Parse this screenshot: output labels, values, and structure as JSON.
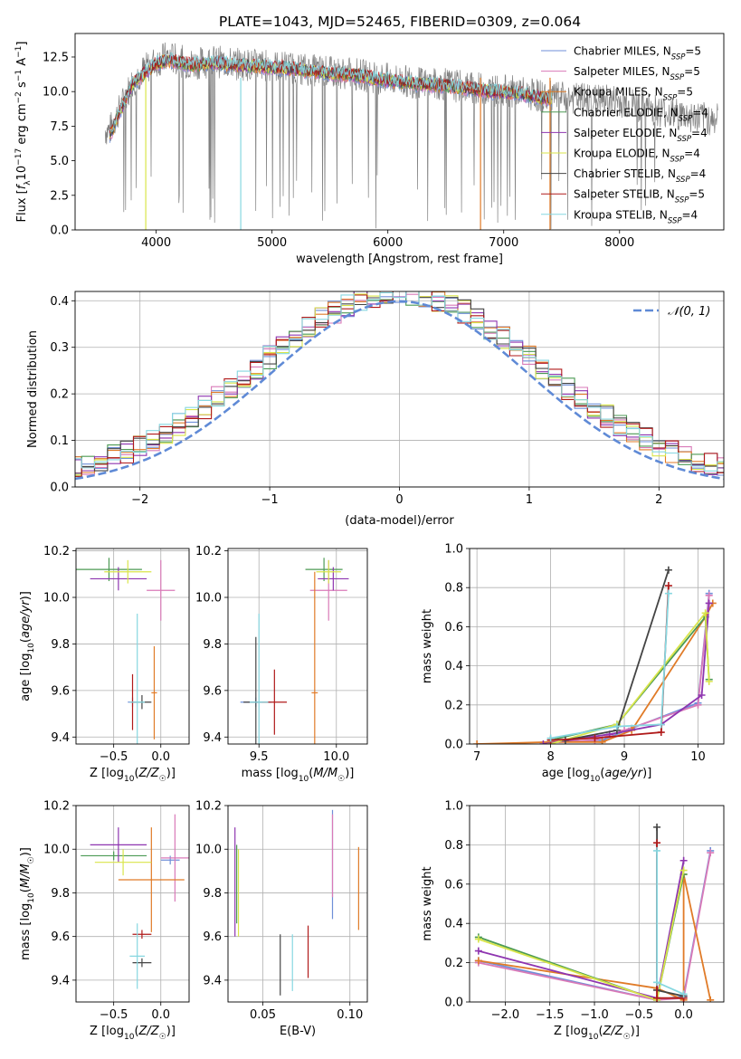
{
  "figure_title": "PLATE=1043, MJD=52465, FIBERID=0309, z=0.064",
  "series_colors": {
    "Chabrier MILES": "#6f8fd8",
    "Salpeter MILES": "#d97ab8",
    "Kroupa MILES": "#e07b28",
    "Chabrier ELODIE": "#4c9a54",
    "Salpeter ELODIE": "#8e35b0",
    "Kroupa ELODIE": "#d9e54a",
    "Chabrier STELIB": "#444444",
    "Salpeter STELIB": "#b01a1a",
    "Kroupa STELIB": "#86d7e0"
  },
  "chart_data": [
    {
      "id": "spectrum",
      "type": "line",
      "title": "PLATE=1043, MJD=52465, FIBERID=0309, z=0.064",
      "xlabel": "wavelength [Angstrom, rest frame]",
      "ylabel": "Flux [fλ10⁻¹⁷ erg cm⁻² s⁻¹ A⁻¹]",
      "xlim": [
        3300,
        8900
      ],
      "ylim": [
        0,
        14.2
      ],
      "xticks": [
        4000,
        5000,
        6000,
        7000,
        8000
      ],
      "yticks": [
        0.0,
        2.5,
        5.0,
        7.5,
        10.0,
        12.5
      ],
      "grid": false,
      "legend_position": "right",
      "data_curve": {
        "color": "#808080",
        "x": [
          3600,
          3700,
          3800,
          3900,
          4000,
          4100,
          4300,
          4500,
          4700,
          4900,
          5100,
          5300,
          5500,
          5700,
          5900,
          6100,
          6300,
          6500,
          6700,
          6900,
          7100,
          7300,
          7400,
          7600,
          7800,
          8000,
          8200,
          8400,
          8600,
          8800
        ],
        "y": [
          7.2,
          9.0,
          10.8,
          11.6,
          12.2,
          12.5,
          12.0,
          12.2,
          12.0,
          11.9,
          11.8,
          11.6,
          11.4,
          11.3,
          11.0,
          10.8,
          10.6,
          10.5,
          10.3,
          10.1,
          10.0,
          9.7,
          9.6,
          9.5,
          9.4,
          9.3,
          8.9,
          8.5,
          8.2,
          8.0
        ]
      },
      "model_series_points": {
        "x": [
          3600,
          3700,
          3800,
          3900,
          4000,
          4100,
          4300,
          4500,
          4700,
          4900,
          5100,
          5300,
          5500,
          5700,
          5900,
          6100,
          6300,
          6500,
          6700,
          6900,
          7100,
          7300,
          7400
        ],
        "y": [
          6.8,
          8.8,
          10.6,
          11.3,
          12.0,
          12.3,
          11.9,
          12.1,
          11.9,
          11.8,
          11.7,
          11.5,
          11.3,
          11.2,
          10.9,
          10.7,
          10.5,
          10.4,
          10.2,
          10.0,
          9.9,
          9.6,
          9.5
        ]
      },
      "series": [
        {
          "name": "Chabrier MILES, N_SSP=5",
          "label_main": "Chabrier MILES, N",
          "label_sub": "SSP",
          "label_tail": "=5"
        },
        {
          "name": "Salpeter MILES, N_SSP=5",
          "label_main": "Salpeter MILES, N",
          "label_sub": "SSP",
          "label_tail": "=5"
        },
        {
          "name": "Kroupa MILES, N_SSP=5",
          "label_main": "Kroupa MILES, N",
          "label_sub": "SSP",
          "label_tail": "=5"
        },
        {
          "name": "Chabrier ELODIE, N_SSP=4",
          "label_main": "Chabrier ELODIE, N",
          "label_sub": "SSP",
          "label_tail": "=4"
        },
        {
          "name": "Salpeter ELODIE, N_SSP=4",
          "label_main": "Salpeter ELODIE, N",
          "label_sub": "SSP",
          "label_tail": "=4"
        },
        {
          "name": "Kroupa ELODIE, N_SSP=4",
          "label_main": "Kroupa ELODIE, N",
          "label_sub": "SSP",
          "label_tail": "=4"
        },
        {
          "name": "Chabrier STELIB, N_SSP=4",
          "label_main": "Chabrier STELIB, N",
          "label_sub": "SSP",
          "label_tail": "=4"
        },
        {
          "name": "Salpeter STELIB, N_SSP=5",
          "label_main": "Salpeter STELIB, N",
          "label_sub": "SSP",
          "label_tail": "=5"
        },
        {
          "name": "Kroupa STELIB, N_SSP=4",
          "label_main": "Kroupa STELIB, N",
          "label_sub": "SSP",
          "label_tail": "=4"
        }
      ]
    },
    {
      "id": "residuals",
      "type": "line",
      "xlabel": "(data-model)/error",
      "ylabel": "Normed distribution",
      "xlim": [
        -2.5,
        2.5
      ],
      "ylim": [
        0,
        0.42
      ],
      "xticks": [
        -2,
        -1,
        0,
        1,
        2
      ],
      "yticks": [
        0.0,
        0.1,
        0.2,
        0.3,
        0.4
      ],
      "grid": true,
      "legend_position": "top-right",
      "reference_curve": {
        "name": "𝒩(0, 1)",
        "mean": 0,
        "sigma": 1,
        "style": "dashed",
        "color": "#5f8ad6"
      },
      "histogram_bin_width": 0.1,
      "histogram_x": [
        -2.45,
        -2.25,
        -2.05,
        -1.85,
        -1.65,
        -1.45,
        -1.25,
        -1.05,
        -0.85,
        -0.65,
        -0.45,
        -0.25,
        -0.05,
        0.15,
        0.35,
        0.55,
        0.75,
        0.95,
        1.15,
        1.35,
        1.55,
        1.75,
        1.95,
        2.15,
        2.35
      ],
      "histogram_y": [
        0.035,
        0.055,
        0.06,
        0.08,
        0.11,
        0.13,
        0.19,
        0.24,
        0.28,
        0.32,
        0.35,
        0.36,
        0.37,
        0.35,
        0.34,
        0.33,
        0.28,
        0.24,
        0.19,
        0.15,
        0.12,
        0.1,
        0.08,
        0.06,
        0.045
      ]
    },
    {
      "id": "age_vs_Z",
      "type": "scatter",
      "xlabel": "Z [log10(Z/Z☉)]",
      "ylabel": "age [log10(age/yr)]",
      "xlim": [
        -0.9,
        0.3
      ],
      "ylim": [
        9.37,
        10.21
      ],
      "xticks": [
        -0.5,
        0.0
      ],
      "yticks": [
        9.4,
        9.6,
        9.8,
        10.0,
        10.2
      ],
      "grid": true,
      "points": [
        {
          "series": "Chabrier MILES",
          "x": -0.3,
          "y": 9.55,
          "xerr": 0.05,
          "yerr": 0.02
        },
        {
          "series": "Salpeter MILES",
          "x": 0.0,
          "y": 10.03,
          "xerr": 0.15,
          "yerr": 0.13
        },
        {
          "series": "Kroupa MILES",
          "x": -0.07,
          "y": 9.59,
          "xerr": 0.03,
          "yerr": 0.2
        },
        {
          "series": "Chabrier ELODIE",
          "x": -0.55,
          "y": 10.12,
          "xerr": 0.35,
          "yerr": 0.05
        },
        {
          "series": "Salpeter ELODIE",
          "x": -0.45,
          "y": 10.08,
          "xerr": 0.3,
          "yerr": 0.05
        },
        {
          "series": "Kroupa ELODIE",
          "x": -0.35,
          "y": 10.11,
          "xerr": 0.25,
          "yerr": 0.05
        },
        {
          "series": "Chabrier STELIB",
          "x": -0.2,
          "y": 9.55,
          "xerr": 0.1,
          "yerr": 0.03
        },
        {
          "series": "Salpeter STELIB",
          "x": -0.3,
          "y": 9.55,
          "xerr": 0.02,
          "yerr": 0.12
        },
        {
          "series": "Kroupa STELIB",
          "x": -0.25,
          "y": 9.55,
          "xerr": 0.08,
          "yerr": 0.38
        }
      ]
    },
    {
      "id": "age_vs_mass",
      "type": "scatter",
      "xlabel": "mass [log10(M/M☉)]",
      "ylabel": "",
      "xlim": [
        9.3,
        10.2
      ],
      "ylim": [
        9.37,
        10.21
      ],
      "xticks": [
        9.5,
        10.0
      ],
      "yticks": [
        9.4,
        9.6,
        9.8,
        10.0,
        10.2
      ],
      "grid": true,
      "points": [
        {
          "series": "Chabrier MILES",
          "x": 9.48,
          "y": 9.55,
          "xerr": 0.1,
          "yerr": 0.02
        },
        {
          "series": "Salpeter MILES",
          "x": 9.95,
          "y": 10.03,
          "xerr": 0.12,
          "yerr": 0.13
        },
        {
          "series": "Kroupa MILES",
          "x": 9.86,
          "y": 9.59,
          "xerr": 0.02,
          "yerr": 0.52
        },
        {
          "series": "Chabrier ELODIE",
          "x": 9.92,
          "y": 10.12,
          "xerr": 0.12,
          "yerr": 0.05
        },
        {
          "series": "Salpeter ELODIE",
          "x": 9.98,
          "y": 10.08,
          "xerr": 0.1,
          "yerr": 0.05
        },
        {
          "series": "Kroupa ELODIE",
          "x": 9.95,
          "y": 10.11,
          "xerr": 0.08,
          "yerr": 0.05
        },
        {
          "series": "Chabrier STELIB",
          "x": 9.48,
          "y": 9.55,
          "xerr": 0.08,
          "yerr": 0.28
        },
        {
          "series": "Salpeter STELIB",
          "x": 9.6,
          "y": 9.55,
          "xerr": 0.08,
          "yerr": 0.14
        },
        {
          "series": "Kroupa STELIB",
          "x": 9.5,
          "y": 9.55,
          "xerr": 0.06,
          "yerr": 0.38
        }
      ]
    },
    {
      "id": "mass_weight_vs_age",
      "type": "line",
      "xlabel": "age [log10(age/yr)]",
      "ylabel": "mass weight",
      "xlim": [
        6.9,
        10.35
      ],
      "ylim": [
        0,
        1
      ],
      "xticks": [
        7,
        8,
        9,
        10
      ],
      "yticks": [
        0.0,
        0.2,
        0.4,
        0.6,
        0.8,
        1.0
      ],
      "grid": true,
      "series": [
        {
          "name": "Chabrier MILES",
          "x": [
            8.0,
            8.7,
            9.1,
            10.0,
            10.15
          ],
          "y": [
            0.01,
            0.02,
            0.08,
            0.21,
            0.77
          ]
        },
        {
          "name": "Salpeter MILES",
          "x": [
            8.0,
            8.6,
            9.0,
            10.0,
            10.15
          ],
          "y": [
            0.01,
            0.02,
            0.07,
            0.2,
            0.76
          ]
        },
        {
          "name": "Kroupa MILES",
          "x": [
            7.0,
            8.0,
            8.7,
            9.1,
            10.1,
            10.2
          ],
          "y": [
            0.0,
            0.01,
            0.01,
            0.07,
            0.65,
            0.72
          ]
        },
        {
          "name": "Chabrier ELODIE",
          "x": [
            8.0,
            8.9,
            10.1,
            10.15
          ],
          "y": [
            0.02,
            0.1,
            0.65,
            0.33
          ]
        },
        {
          "name": "Salpeter ELODIE",
          "x": [
            7.9,
            8.8,
            9.5,
            10.05,
            10.15
          ],
          "y": [
            0.0,
            0.05,
            0.1,
            0.25,
            0.72
          ]
        },
        {
          "name": "Kroupa ELODIE",
          "x": [
            8.0,
            8.9,
            10.1,
            10.15
          ],
          "y": [
            0.0,
            0.1,
            0.67,
            0.32
          ]
        },
        {
          "name": "Chabrier STELIB",
          "x": [
            8.2,
            8.9,
            9.6
          ],
          "y": [
            0.02,
            0.07,
            0.89
          ]
        },
        {
          "name": "Salpeter STELIB",
          "x": [
            8.0,
            8.6,
            9.5,
            9.6
          ],
          "y": [
            0.02,
            0.03,
            0.06,
            0.81
          ]
        },
        {
          "name": "Kroupa STELIB",
          "x": [
            8.0,
            8.9,
            9.5,
            9.6
          ],
          "y": [
            0.03,
            0.09,
            0.1,
            0.77
          ]
        }
      ]
    },
    {
      "id": "mass_vs_Z",
      "type": "scatter",
      "xlabel": "Z [log10(Z/Z☉)]",
      "ylabel": "mass [log10(M/M☉)]",
      "xlim": [
        -0.9,
        0.3
      ],
      "ylim": [
        9.3,
        10.2
      ],
      "xticks": [
        -0.5,
        0.0
      ],
      "yticks": [
        9.4,
        9.6,
        9.8,
        10.0,
        10.2
      ],
      "grid": true,
      "points": [
        {
          "series": "Chabrier MILES",
          "x": 0.1,
          "y": 9.95,
          "xerr": 0.1,
          "yerr": 0.02
        },
        {
          "series": "Salpeter MILES",
          "x": 0.15,
          "y": 9.96,
          "xerr": 0.15,
          "yerr": 0.2
        },
        {
          "series": "Kroupa MILES",
          "x": -0.1,
          "y": 9.86,
          "xerr": 0.35,
          "yerr": 0.24
        },
        {
          "series": "Chabrier ELODIE",
          "x": -0.5,
          "y": 9.97,
          "xerr": 0.35,
          "yerr": 0.02
        },
        {
          "series": "Salpeter ELODIE",
          "x": -0.45,
          "y": 10.02,
          "xerr": 0.3,
          "yerr": 0.08
        },
        {
          "series": "Kroupa ELODIE",
          "x": -0.4,
          "y": 9.94,
          "xerr": 0.3,
          "yerr": 0.06
        },
        {
          "series": "Chabrier STELIB",
          "x": -0.2,
          "y": 9.48,
          "xerr": 0.1,
          "yerr": 0.02
        },
        {
          "series": "Salpeter STELIB",
          "x": -0.2,
          "y": 9.61,
          "xerr": 0.1,
          "yerr": 0.02
        },
        {
          "series": "Kroupa STELIB",
          "x": -0.25,
          "y": 9.51,
          "xerr": 0.08,
          "yerr": 0.15
        }
      ]
    },
    {
      "id": "mass_vs_EBV",
      "type": "scatter",
      "xlabel": "E(B-V)",
      "ylabel": "",
      "xlim": [
        0.03,
        0.11
      ],
      "ylim": [
        9.3,
        10.2
      ],
      "xticks": [
        0.05,
        0.1
      ],
      "yticks": [
        9.4,
        9.6,
        9.8,
        10.0,
        10.2
      ],
      "grid": true,
      "points": [
        {
          "series": "Chabrier MILES",
          "x": 0.09,
          "y": 9.93,
          "xerr": 0.0,
          "yerr": 0.25
        },
        {
          "series": "Salpeter MILES",
          "x": 0.09,
          "y": 9.97,
          "xerr": 0.0,
          "yerr": 0.19
        },
        {
          "series": "Kroupa MILES",
          "x": 0.105,
          "y": 9.82,
          "xerr": 0.0,
          "yerr": 0.19
        },
        {
          "series": "Chabrier ELODIE",
          "x": 0.035,
          "y": 9.84,
          "xerr": 0.0,
          "yerr": 0.18
        },
        {
          "series": "Salpeter ELODIE",
          "x": 0.034,
          "y": 9.85,
          "xerr": 0.0,
          "yerr": 0.25
        },
        {
          "series": "Kroupa ELODIE",
          "x": 0.036,
          "y": 9.8,
          "xerr": 0.0,
          "yerr": 0.2
        },
        {
          "series": "Chabrier STELIB",
          "x": 0.06,
          "y": 9.47,
          "xerr": 0.0,
          "yerr": 0.14
        },
        {
          "series": "Salpeter STELIB",
          "x": 0.076,
          "y": 9.53,
          "xerr": 0.0,
          "yerr": 0.12
        },
        {
          "series": "Kroupa STELIB",
          "x": 0.067,
          "y": 9.48,
          "xerr": 0.0,
          "yerr": 0.13
        }
      ]
    },
    {
      "id": "mass_weight_vs_Z",
      "type": "line",
      "xlabel": "Z [log10(Z/Z☉)]",
      "ylabel": "mass weight",
      "xlim": [
        -2.4,
        0.45
      ],
      "ylim": [
        0,
        1
      ],
      "xticks": [
        -2.0,
        -1.5,
        -1.0,
        -0.5,
        0.0
      ],
      "yticks": [
        0.0,
        0.2,
        0.4,
        0.6,
        0.8,
        1.0
      ],
      "grid": true,
      "series": [
        {
          "name": "Chabrier MILES",
          "x": [
            -2.3,
            -0.3,
            0.0,
            0.3
          ],
          "y": [
            0.21,
            0.01,
            0.03,
            0.77
          ]
        },
        {
          "name": "Salpeter MILES",
          "x": [
            -2.3,
            -0.3,
            0.0,
            0.3
          ],
          "y": [
            0.2,
            0.01,
            0.02,
            0.76
          ]
        },
        {
          "name": "Kroupa MILES",
          "x": [
            -2.3,
            -0.3,
            0.0,
            0.0,
            0.3
          ],
          "y": [
            0.21,
            0.07,
            0.01,
            0.65,
            0.01
          ]
        },
        {
          "name": "Chabrier ELODIE",
          "x": [
            -2.3,
            -0.3,
            0.0
          ],
          "y": [
            0.33,
            0.01,
            0.65
          ]
        },
        {
          "name": "Salpeter ELODIE",
          "x": [
            -2.3,
            -0.3,
            0.0
          ],
          "y": [
            0.26,
            0.02,
            0.72
          ]
        },
        {
          "name": "Kroupa ELODIE",
          "x": [
            -2.3,
            -0.3,
            0.0
          ],
          "y": [
            0.32,
            0.01,
            0.67
          ]
        },
        {
          "name": "Chabrier STELIB",
          "x": [
            -0.3,
            -0.3,
            0.0
          ],
          "y": [
            0.89,
            0.06,
            0.03
          ]
        },
        {
          "name": "Salpeter STELIB",
          "x": [
            -0.3,
            -0.3,
            0.0
          ],
          "y": [
            0.81,
            0.02,
            0.02
          ]
        },
        {
          "name": "Kroupa STELIB",
          "x": [
            -0.3,
            -0.3,
            0.0
          ],
          "y": [
            0.77,
            0.1,
            0.04
          ]
        }
      ]
    }
  ]
}
